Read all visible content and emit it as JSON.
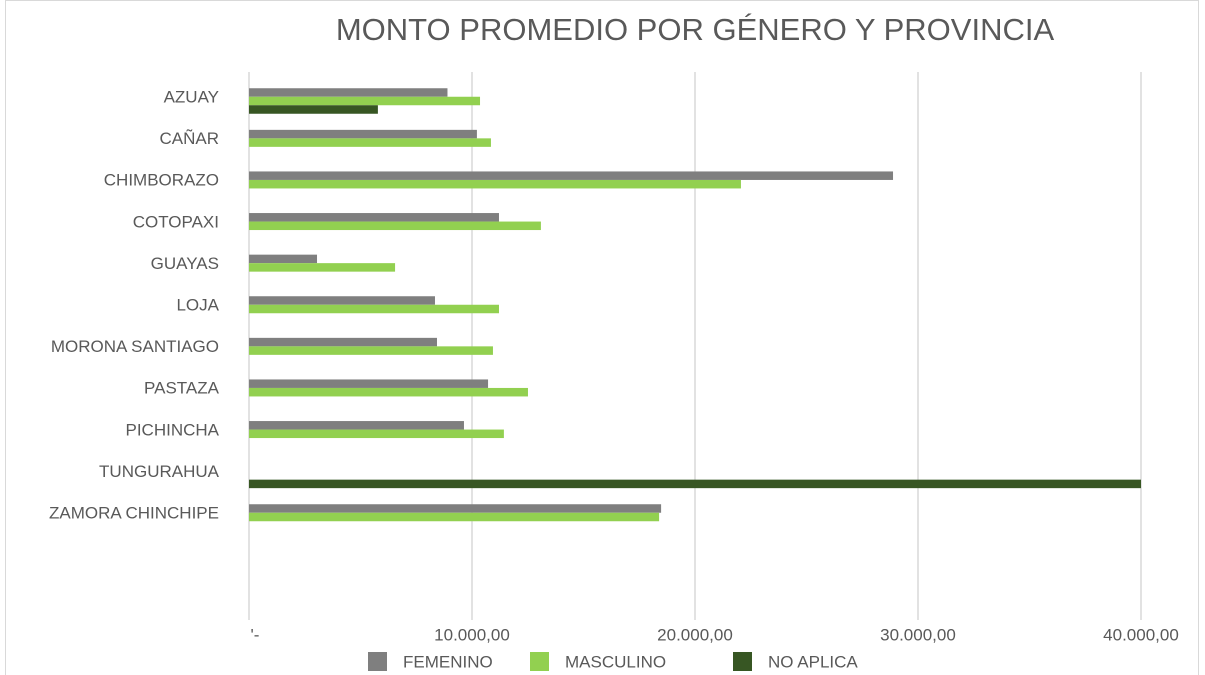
{
  "chart_data": {
    "type": "hbar",
    "title": "MONTO PROMEDIO POR GÉNERO Y PROVINCIA",
    "categories": [
      "AZUAY",
      "CAÑAR",
      "CHIMBORAZO",
      "COTOPAXI",
      "GUAYAS",
      "LOJA",
      "MORONA SANTIAGO",
      "PASTAZA",
      "PICHINCHA",
      "TUNGURAHUA",
      "ZAMORA CHINCHIPE"
    ],
    "series": [
      {
        "name": "FEMENINO",
        "color": "#7f7f7f",
        "values": [
          8900,
          10220,
          28880,
          11210,
          3050,
          8340,
          8430,
          10720,
          9640,
          null,
          18480
        ]
      },
      {
        "name": "MASCULINO",
        "color": "#92d050",
        "values": [
          10360,
          10850,
          22060,
          13090,
          6550,
          11210,
          10940,
          12510,
          11430,
          null,
          18390
        ]
      },
      {
        "name": "NO APLICA",
        "color": "#375623",
        "values": [
          5780,
          null,
          null,
          null,
          null,
          null,
          null,
          null,
          null,
          40000,
          null
        ]
      }
    ],
    "xlim": [
      0,
      40000
    ],
    "xticks": [
      {
        "value": 0,
        "label": "'-"
      },
      {
        "value": 10000,
        "label": "10.000,00"
      },
      {
        "value": 20000,
        "label": "20.000,00"
      },
      {
        "value": 30000,
        "label": "30.000,00"
      },
      {
        "value": 40000,
        "label": "40.000,00"
      }
    ],
    "grid": true,
    "legend": "bottom"
  }
}
